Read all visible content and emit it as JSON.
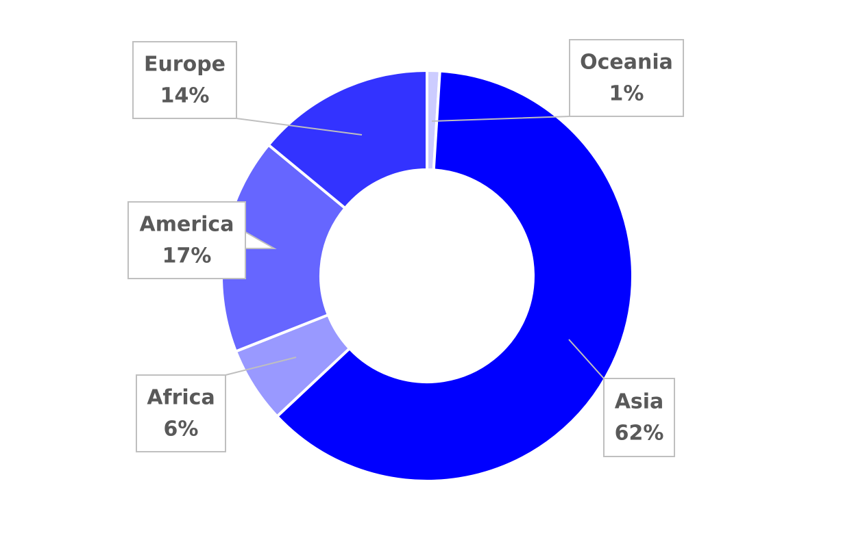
{
  "chart_data": {
    "type": "pie",
    "categories": [
      "Oceania",
      "Asia",
      "Africa",
      "America",
      "Europe"
    ],
    "values": [
      1,
      62,
      6,
      17,
      14
    ],
    "value_labels": [
      "1%",
      "62%",
      "6%",
      "17%",
      "14%"
    ],
    "colors": [
      "#ccccff",
      "#0000ff",
      "#9999ff",
      "#6666ff",
      "#3333ff"
    ]
  }
}
